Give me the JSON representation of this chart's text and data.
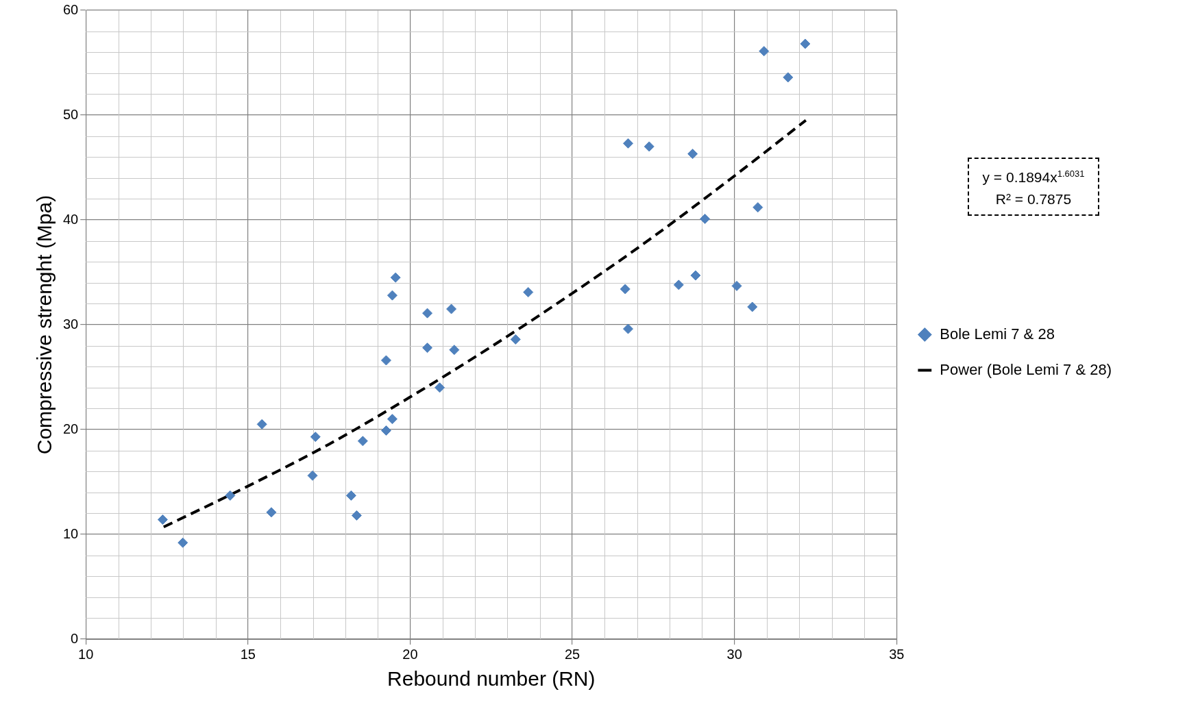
{
  "chart_data": {
    "type": "scatter",
    "xlabel": "Rebound number (RN)",
    "ylabel": "Compressive strenght (Mpa)",
    "xlim": [
      10,
      35
    ],
    "xticks": [
      10,
      15,
      20,
      25,
      30,
      35
    ],
    "ylim": [
      0,
      60
    ],
    "yticks": [
      0,
      10,
      20,
      30,
      40,
      50,
      60
    ],
    "grid": true,
    "legend": "right",
    "marker": "diamond",
    "annotations": [
      "y = 0.1894x$^{1.6031}$",
      "R² = 0.7875"
    ],
    "series": [
      {
        "name": "Bole Lemi 7 & 28",
        "color": "#4f81bd",
        "x": [
          12.37,
          12.99,
          14.45,
          15.43,
          15.72,
          16.99,
          17.08,
          18.18,
          18.35,
          18.54,
          19.26,
          19.26,
          19.45,
          19.45,
          19.55,
          20.53,
          20.53,
          20.91,
          21.27,
          21.36,
          23.25,
          23.64,
          26.63,
          26.72,
          26.72,
          27.37,
          28.28,
          28.71,
          28.8,
          29.09,
          30.07,
          30.55,
          30.72,
          30.91,
          31.65,
          32.18
        ],
        "values": [
          11.4,
          9.2,
          13.7,
          20.5,
          12.1,
          15.6,
          19.3,
          13.7,
          11.8,
          18.9,
          19.9,
          26.6,
          21.0,
          32.8,
          34.5,
          31.1,
          27.8,
          24.0,
          31.5,
          27.6,
          28.6,
          33.1,
          33.4,
          47.3,
          29.6,
          47.0,
          33.8,
          46.3,
          34.7,
          40.1,
          33.7,
          31.7,
          41.2,
          56.1,
          53.6,
          56.8
        ]
      },
      {
        "name": "Power (Bole Lemi 7 & 28)",
        "type": "line",
        "color": "#000000",
        "marker": "none",
        "line_style": "dashed",
        "x": [
          12.4,
          15,
          17.5,
          20,
          22.5,
          25,
          27.5,
          30,
          32.2
        ],
        "values": [
          10.7,
          14.6,
          18.6,
          23.1,
          27.9,
          33.0,
          38.4,
          44.2,
          49.5
        ]
      }
    ]
  }
}
